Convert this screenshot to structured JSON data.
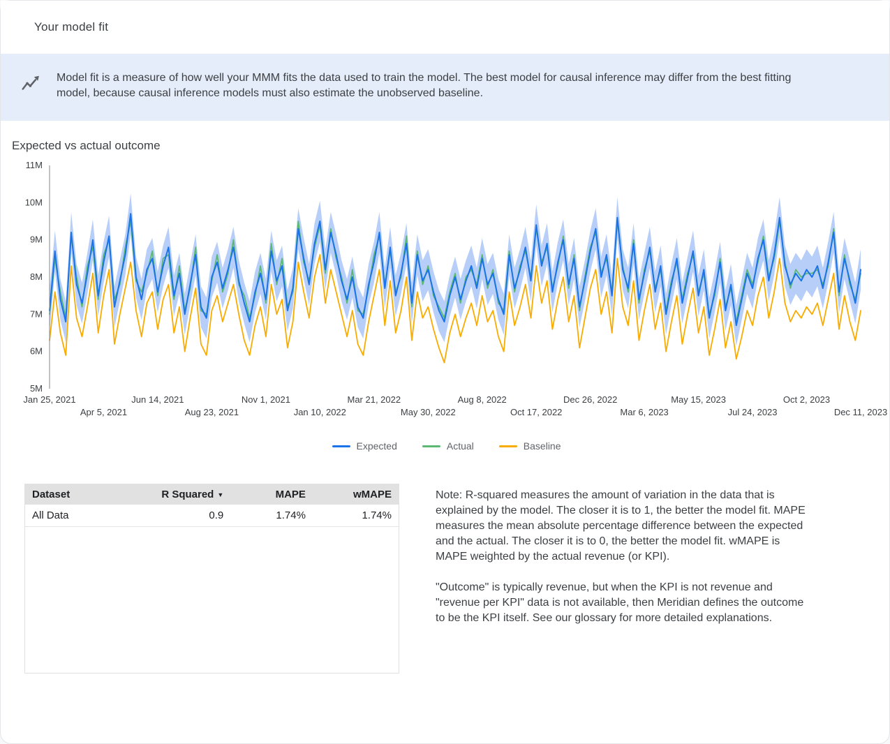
{
  "page": {
    "title": "Your model fit",
    "banner": {
      "icon": "trend-line-icon",
      "text": "Model fit is a measure of how well your MMM fits the data used to train the model. The best model for causal inference may differ from the best fitting model, because causal inference models must also estimate the unobserved baseline."
    },
    "section_title": "Expected vs actual outcome"
  },
  "chart_data": {
    "type": "line",
    "title": "Expected vs actual outcome",
    "x_unit": "week",
    "x_range": [
      "Jan 25, 2021",
      "Dec 11, 2023"
    ],
    "ylim_m": [
      5,
      11
    ],
    "y_ticks": [
      "5M",
      "6M",
      "7M",
      "8M",
      "9M",
      "10M",
      "11M"
    ],
    "x_ticks": [
      {
        "label": "Jan 25, 2021",
        "week": 0
      },
      {
        "label": "Apr 5, 2021",
        "week": 10
      },
      {
        "label": "Jun 14, 2021",
        "week": 20
      },
      {
        "label": "Aug 23, 2021",
        "week": 30
      },
      {
        "label": "Nov 1, 2021",
        "week": 40
      },
      {
        "label": "Jan 10, 2022",
        "week": 50
      },
      {
        "label": "Mar 21, 2022",
        "week": 60
      },
      {
        "label": "May 30, 2022",
        "week": 70
      },
      {
        "label": "Aug 8, 2022",
        "week": 80
      },
      {
        "label": "Oct 17, 2022",
        "week": 90
      },
      {
        "label": "Dec 26, 2022",
        "week": 100
      },
      {
        "label": "Mar 6, 2023",
        "week": 110
      },
      {
        "label": "May 15, 2023",
        "week": 120
      },
      {
        "label": "Jul 24, 2023",
        "week": 130
      },
      {
        "label": "Oct 2, 2023",
        "week": 140
      },
      {
        "label": "Dec 11, 2023",
        "week": 150
      }
    ],
    "legend": [
      {
        "name": "Expected",
        "color": "#1a73e8"
      },
      {
        "name": "Actual",
        "color": "#5bb974"
      },
      {
        "name": "Baseline",
        "color": "#f9ab00"
      }
    ],
    "band": {
      "series": "Expected",
      "halfwidth_m": 0.55,
      "color": "#aac5f8",
      "opacity": 0.85
    },
    "series": [
      {
        "name": "Expected",
        "color": "#1a73e8",
        "values_m": [
          7.1,
          8.7,
          7.4,
          6.8,
          9.2,
          7.8,
          7.3,
          8.1,
          9.0,
          7.5,
          8.4,
          9.1,
          7.2,
          7.9,
          8.6,
          9.7,
          8.0,
          7.4,
          8.2,
          8.5,
          7.6,
          8.3,
          8.8,
          7.5,
          8.1,
          7.0,
          7.8,
          8.6,
          7.2,
          6.9,
          8.0,
          8.4,
          7.7,
          8.2,
          8.8,
          7.9,
          7.3,
          6.8,
          7.6,
          8.1,
          7.4,
          8.7,
          7.9,
          8.3,
          7.1,
          7.7,
          9.3,
          8.5,
          7.8,
          8.9,
          9.5,
          8.2,
          9.2,
          8.6,
          7.9,
          7.4,
          8.0,
          7.2,
          6.9,
          7.8,
          8.4,
          9.2,
          7.7,
          8.8,
          7.5,
          8.1,
          8.9,
          7.3,
          8.6,
          7.9,
          8.2,
          7.6,
          7.1,
          6.8,
          7.5,
          8.0,
          7.4,
          7.9,
          8.3,
          7.7,
          8.5,
          7.8,
          8.1,
          7.4,
          7.0,
          8.6,
          7.7,
          8.2,
          8.8,
          7.9,
          9.4,
          8.3,
          8.9,
          7.6,
          8.4,
          9.0,
          7.8,
          8.5,
          7.2,
          7.9,
          8.7,
          9.3,
          8.0,
          8.6,
          7.5,
          9.6,
          8.2,
          7.7,
          8.9,
          7.4,
          8.1,
          8.8,
          7.6,
          8.3,
          7.0,
          7.8,
          8.5,
          7.3,
          8.0,
          8.7,
          7.5,
          8.2,
          6.9,
          7.6,
          8.4,
          7.1,
          7.8,
          6.7,
          7.4,
          8.1,
          7.7,
          8.5,
          9.0,
          7.9,
          8.6,
          9.6,
          8.3,
          7.8,
          8.1,
          7.9,
          8.2,
          8.0,
          8.3,
          7.7,
          8.4,
          9.2,
          7.6,
          8.5,
          7.9,
          7.3,
          8.2
        ]
      },
      {
        "name": "Actual",
        "color": "#5bb974",
        "values_m": [
          7.0,
          8.5,
          7.6,
          6.9,
          9.1,
          8.0,
          7.2,
          8.3,
          8.8,
          7.4,
          8.6,
          9.0,
          7.4,
          7.8,
          8.8,
          9.5,
          7.9,
          7.6,
          8.1,
          8.7,
          7.5,
          8.5,
          8.6,
          7.4,
          8.3,
          7.1,
          7.7,
          8.8,
          7.1,
          7.0,
          7.9,
          8.6,
          7.6,
          8.1,
          9.0,
          7.8,
          7.5,
          6.9,
          7.5,
          8.3,
          7.3,
          8.9,
          7.8,
          8.5,
          7.2,
          7.6,
          9.5,
          8.4,
          7.9,
          8.8,
          9.4,
          8.1,
          9.3,
          8.5,
          8.0,
          7.3,
          8.2,
          7.1,
          7.0,
          7.7,
          8.6,
          9.1,
          7.8,
          8.7,
          7.6,
          8.0,
          9.1,
          7.2,
          8.7,
          7.8,
          8.3,
          7.5,
          7.2,
          6.9,
          7.6,
          8.1,
          7.3,
          8.0,
          8.2,
          7.8,
          8.6,
          7.7,
          8.2,
          7.3,
          7.1,
          8.7,
          7.6,
          8.3,
          8.7,
          8.0,
          9.3,
          8.4,
          8.8,
          7.7,
          8.3,
          9.1,
          7.7,
          8.6,
          7.1,
          8.0,
          8.8,
          9.2,
          8.1,
          8.5,
          7.6,
          9.5,
          8.3,
          7.6,
          9.0,
          7.3,
          8.2,
          8.7,
          7.7,
          8.2,
          7.1,
          7.9,
          8.4,
          7.4,
          8.1,
          8.6,
          7.6,
          8.1,
          7.0,
          7.5,
          8.5,
          7.2,
          7.7,
          6.8,
          7.5,
          8.2,
          7.8,
          8.4,
          9.1,
          8.0,
          8.5,
          9.5,
          8.4,
          7.7,
          8.2,
          8.0,
          8.1,
          8.1,
          8.2,
          7.8,
          8.3,
          9.3,
          7.5,
          8.6,
          7.8,
          7.4,
          8.1
        ]
      },
      {
        "name": "Baseline",
        "color": "#f9ab00",
        "values_m": [
          6.3,
          7.6,
          6.5,
          5.9,
          8.3,
          6.9,
          6.4,
          7.2,
          8.1,
          6.5,
          7.5,
          8.2,
          6.2,
          7.0,
          7.7,
          8.4,
          7.1,
          6.4,
          7.3,
          7.6,
          6.6,
          7.4,
          7.8,
          6.5,
          7.2,
          6.0,
          6.9,
          7.7,
          6.2,
          5.9,
          7.1,
          7.5,
          6.8,
          7.3,
          7.8,
          7.0,
          6.3,
          5.9,
          6.7,
          7.2,
          6.4,
          7.8,
          7.0,
          7.4,
          6.1,
          6.8,
          8.4,
          7.6,
          6.9,
          8.0,
          8.6,
          7.3,
          8.2,
          7.6,
          7.0,
          6.4,
          7.1,
          6.2,
          5.9,
          6.8,
          7.5,
          8.2,
          6.7,
          7.9,
          6.5,
          7.1,
          8.0,
          6.3,
          7.6,
          6.9,
          7.2,
          6.6,
          6.1,
          5.7,
          6.5,
          7.0,
          6.4,
          6.9,
          7.3,
          6.7,
          7.5,
          6.8,
          7.1,
          6.4,
          6.0,
          7.6,
          6.7,
          7.2,
          7.8,
          6.9,
          8.3,
          7.3,
          7.9,
          6.6,
          7.4,
          8.0,
          6.8,
          7.5,
          6.1,
          6.9,
          7.7,
          8.2,
          7.0,
          7.6,
          6.5,
          8.5,
          7.2,
          6.7,
          7.9,
          6.3,
          7.1,
          7.8,
          6.6,
          7.3,
          6.0,
          6.8,
          7.5,
          6.2,
          7.0,
          7.7,
          6.5,
          7.2,
          5.9,
          6.6,
          7.4,
          6.1,
          6.8,
          5.8,
          6.4,
          7.1,
          6.7,
          7.5,
          8.0,
          6.9,
          7.6,
          8.5,
          7.3,
          6.8,
          7.1,
          6.9,
          7.2,
          7.0,
          7.3,
          6.7,
          7.4,
          8.1,
          6.6,
          7.5,
          6.8,
          6.3,
          7.1
        ]
      }
    ]
  },
  "table": {
    "headers": [
      "Dataset",
      "R Squared",
      "MAPE",
      "wMAPE"
    ],
    "sorted_by": "R Squared",
    "sort_icon": "▼",
    "rows": [
      [
        "All Data",
        "0.9",
        "1.74%",
        "1.74%"
      ]
    ]
  },
  "notes": {
    "p1": "Note: R-squared measures the amount of variation in the data that is explained by the model. The closer it is to 1, the better the model fit. MAPE measures the mean absolute percentage difference between the expected and the actual. The closer it is to 0, the better the model fit. wMAPE is MAPE weighted by the actual revenue (or KPI).",
    "p2": "\"Outcome\" is typically revenue, but when the KPI is not revenue and \"revenue per KPI\" data is not available, then Meridian defines the outcome to be the KPI itself. See our glossary for more detailed explanations."
  }
}
